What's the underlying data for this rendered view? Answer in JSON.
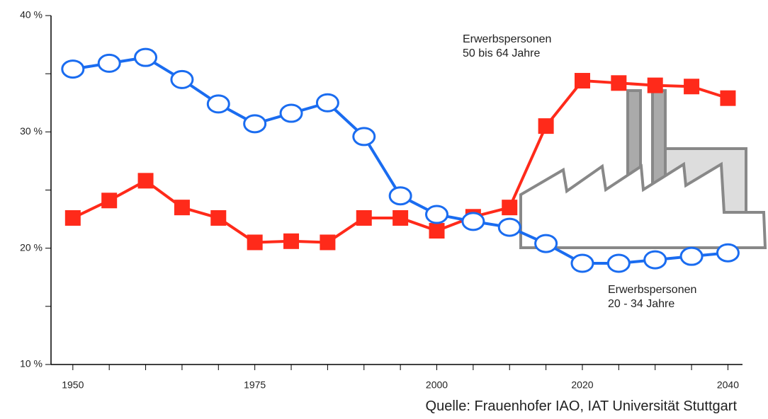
{
  "chart_data": {
    "type": "line",
    "x": [
      1950,
      1955,
      1960,
      1965,
      1970,
      1975,
      1980,
      1985,
      1990,
      1995,
      2000,
      2005,
      2010,
      2015,
      2020,
      2025,
      2030,
      2035,
      2040
    ],
    "series": [
      {
        "color": "#ff2a1a",
        "marker": "square",
        "values": [
          22.6,
          24.1,
          25.8,
          23.5,
          22.6,
          20.5,
          20.6,
          20.5,
          22.6,
          22.6,
          21.5,
          22.7,
          23.5,
          30.5,
          34.4,
          34.2,
          34.0,
          33.9,
          32.9
        ]
      },
      {
        "color": "#1a6cf0",
        "marker": "circle",
        "values": [
          35.4,
          35.9,
          36.4,
          34.5,
          32.4,
          30.7,
          31.6,
          32.5,
          29.6,
          24.5,
          22.9,
          22.3,
          21.8,
          20.4,
          18.7,
          18.7,
          19.0,
          19.3,
          19.6
        ]
      }
    ],
    "xlim": [
      1947,
      2042
    ],
    "xticks": [
      1950,
      1975,
      2000,
      2020,
      2040
    ],
    "xminorticks": [
      1955,
      1960,
      1965,
      1970,
      1980,
      1985,
      1990,
      1995,
      2005,
      2010,
      2015,
      2025,
      2030,
      2035
    ],
    "ylim": [
      10,
      40
    ],
    "yticks": [
      {
        "value": 10,
        "label": "10 %"
      },
      {
        "value": 20,
        "label": "20 %"
      },
      {
        "value": 30,
        "label": "30 %"
      },
      {
        "value": 40,
        "label": "40 %"
      }
    ],
    "yminorticks": [
      15,
      25,
      35
    ],
    "annotations": [
      {
        "lines": [
          "Erwerbspersonen",
          "50 bis 64 Jahre"
        ]
      },
      {
        "lines": [
          "Erwerbspersonen",
          "20 - 34 Jahre"
        ]
      }
    ],
    "source": "Quelle: Frauenhofer IAO, IAT Universität Stuttgart"
  }
}
